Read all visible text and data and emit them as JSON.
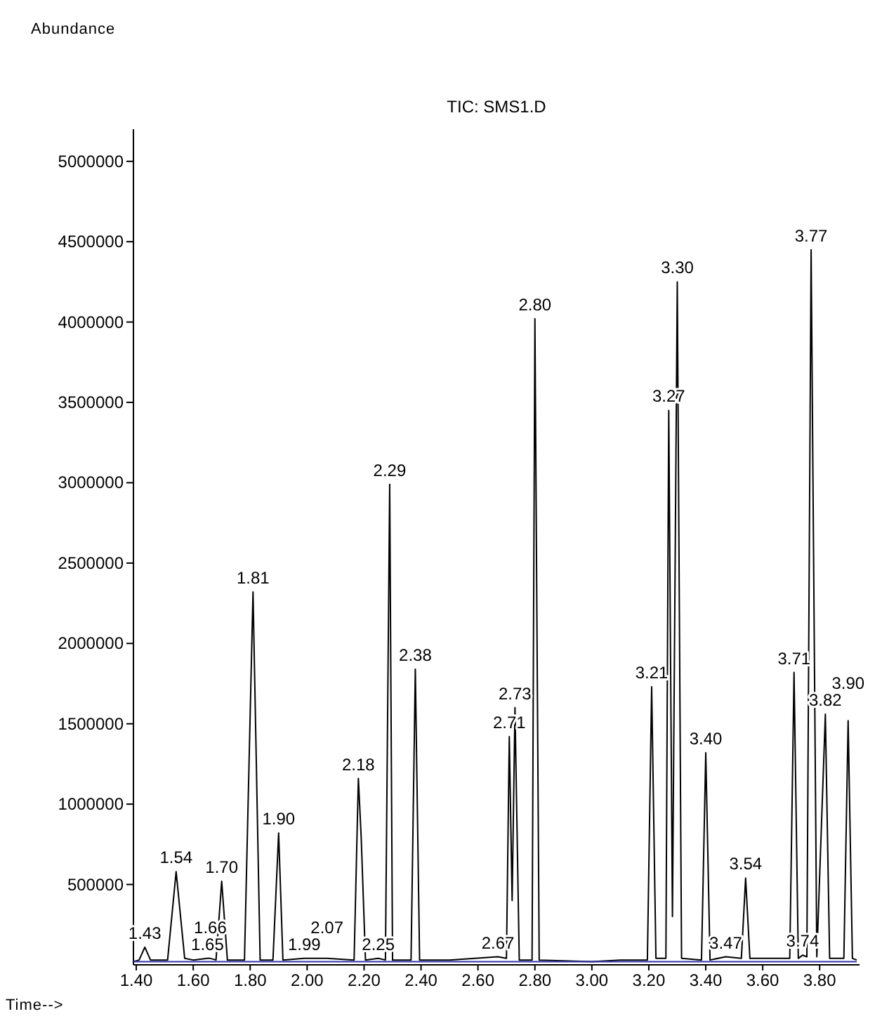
{
  "chart_data": {
    "type": "line",
    "title": "TIC: SMS1.D",
    "xlabel": "Time-->",
    "xlim": [
      1.39,
      3.94
    ],
    "ylim": [
      0,
      5200000
    ],
    "xticks": [
      {
        "value": 1.4,
        "label": "1.40"
      },
      {
        "value": 1.6,
        "label": "1.60"
      },
      {
        "value": 1.8,
        "label": "1.80"
      },
      {
        "value": 2.0,
        "label": "2.00"
      },
      {
        "value": 2.2,
        "label": "2.20"
      },
      {
        "value": 2.4,
        "label": "2.40"
      },
      {
        "value": 2.6,
        "label": "2.60"
      },
      {
        "value": 2.8,
        "label": "2.80"
      },
      {
        "value": 3.0,
        "label": "3.00"
      },
      {
        "value": 3.2,
        "label": "3.20"
      },
      {
        "value": 3.4,
        "label": "3.40"
      },
      {
        "value": 3.6,
        "label": "3.60"
      },
      {
        "value": 3.8,
        "label": "3.80"
      }
    ],
    "yticks": [
      500000,
      1000000,
      1500000,
      2000000,
      2500000,
      3000000,
      3500000,
      4000000,
      4500000,
      5000000
    ],
    "grid": false,
    "marker": "none",
    "line_style": "solid",
    "series": [
      {
        "color": "#000000",
        "x": [
          1.39,
          1.41,
          1.43,
          1.45,
          1.51,
          1.54,
          1.57,
          1.6,
          1.65,
          1.66,
          1.68,
          1.7,
          1.72,
          1.78,
          1.81,
          1.835,
          1.88,
          1.9,
          1.915,
          1.99,
          2.07,
          2.165,
          2.18,
          2.19,
          2.205,
          2.25,
          2.275,
          2.29,
          2.3,
          2.365,
          2.38,
          2.395,
          2.5,
          2.67,
          2.7,
          2.71,
          2.72,
          2.73,
          2.745,
          2.79,
          2.8,
          2.815,
          3.0,
          3.1,
          3.195,
          3.21,
          3.225,
          3.26,
          3.27,
          3.283,
          3.3,
          3.315,
          3.385,
          3.4,
          3.415,
          3.47,
          3.525,
          3.54,
          3.555,
          3.65,
          3.695,
          3.71,
          3.725,
          3.74,
          3.755,
          3.77,
          3.79,
          3.82,
          3.835,
          3.885,
          3.9,
          3.915,
          3.93
        ],
        "values": [
          20000,
          30000,
          110000,
          30000,
          30000,
          580000,
          40000,
          30000,
          40000,
          40000,
          30000,
          520000,
          30000,
          30000,
          2320000,
          30000,
          30000,
          820000,
          30000,
          40000,
          40000,
          30000,
          1160000,
          790000,
          30000,
          40000,
          30000,
          2990000,
          30000,
          30000,
          1840000,
          30000,
          30000,
          50000,
          40000,
          1420000,
          400000,
          1600000,
          30000,
          30000,
          4020000,
          30000,
          20000,
          30000,
          30000,
          1730000,
          40000,
          40000,
          3450000,
          300000,
          4250000,
          40000,
          30000,
          1320000,
          30000,
          50000,
          40000,
          540000,
          40000,
          40000,
          40000,
          1820000,
          40000,
          60000,
          50000,
          4450000,
          50000,
          1560000,
          40000,
          40000,
          1520000,
          40000,
          30000
        ]
      },
      {
        "color": "#3333aa",
        "x": [
          1.39,
          3.93
        ],
        "values": [
          20000,
          20000
        ]
      }
    ],
    "annotations": [
      "Abundance",
      {
        "text": "1.43",
        "x": 1.43,
        "y": 110000
      },
      {
        "text": "1.54",
        "x": 1.54,
        "y": 580000
      },
      {
        "text": "1.65",
        "x": 1.65,
        "y": 40000
      },
      {
        "text": "1.66",
        "x": 1.66,
        "y": 40000
      },
      {
        "text": "1.70",
        "x": 1.7,
        "y": 520000
      },
      {
        "text": "1.81",
        "x": 1.81,
        "y": 2320000
      },
      {
        "text": "1.90",
        "x": 1.9,
        "y": 820000
      },
      {
        "text": "1.99",
        "x": 1.99,
        "y": 40000
      },
      {
        "text": "2.07",
        "x": 2.07,
        "y": 40000
      },
      {
        "text": "2.18",
        "x": 2.18,
        "y": 1160000
      },
      {
        "text": "2.25",
        "x": 2.25,
        "y": 40000
      },
      {
        "text": "2.29",
        "x": 2.29,
        "y": 2990000
      },
      {
        "text": "2.38",
        "x": 2.38,
        "y": 1840000
      },
      {
        "text": "2.67",
        "x": 2.67,
        "y": 50000
      },
      {
        "text": "2.71",
        "x": 2.71,
        "y": 1420000
      },
      {
        "text": "2.73",
        "x": 2.73,
        "y": 1600000
      },
      {
        "text": "2.80",
        "x": 2.8,
        "y": 4020000
      },
      {
        "text": "3.21",
        "x": 3.21,
        "y": 1730000
      },
      {
        "text": "3.27",
        "x": 3.27,
        "y": 3450000
      },
      {
        "text": "3.30",
        "x": 3.3,
        "y": 4250000
      },
      {
        "text": "3.40",
        "x": 3.4,
        "y": 1320000
      },
      {
        "text": "3.47",
        "x": 3.47,
        "y": 50000
      },
      {
        "text": "3.54",
        "x": 3.54,
        "y": 540000
      },
      {
        "text": "3.71",
        "x": 3.71,
        "y": 1820000
      },
      {
        "text": "3.74",
        "x": 3.74,
        "y": 60000
      },
      {
        "text": "3.77",
        "x": 3.77,
        "y": 4450000
      },
      {
        "text": "3.82",
        "x": 3.82,
        "y": 1560000
      },
      {
        "text": "3.90",
        "x": 3.9,
        "y": 1520000
      }
    ]
  }
}
